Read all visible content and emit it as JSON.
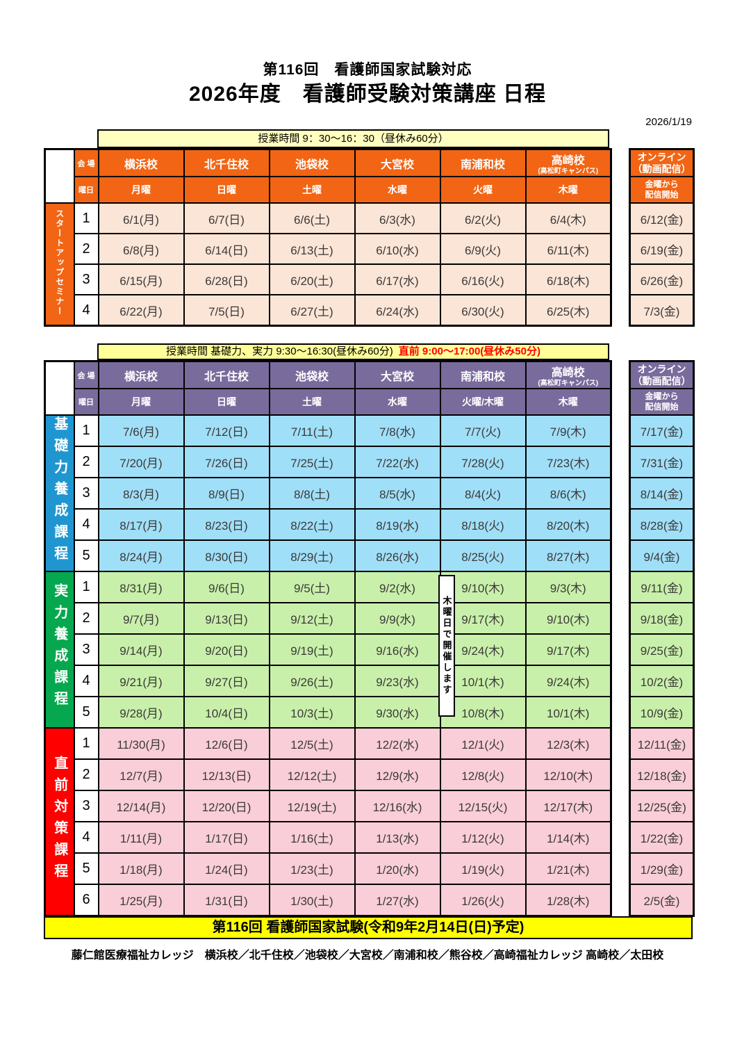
{
  "title": {
    "line1": "第116回　看護師国家試験対応",
    "line2": "2026年度　看護師受験対策講座 日程"
  },
  "date_label": "2026/1/19",
  "table1": {
    "time_note": "授業時間  9：30～16：30（昼休み60分）",
    "venue_label": "会 場",
    "day_label": "曜日",
    "schools": [
      "横浜校",
      "北千住校",
      "池袋校",
      "大宮校",
      "南浦和校",
      "高崎校"
    ],
    "takasaki_sub": "(高松町キャンパス)",
    "days": [
      "月曜",
      "日曜",
      "土曜",
      "水曜",
      "火曜",
      "木曜"
    ],
    "online": {
      "line1": "オンライン",
      "line2": "（動画配信）",
      "line3": "金曜から",
      "line4": "配信開始"
    },
    "section": {
      "label": "スタートアップセミナー",
      "rows": [
        {
          "no": "1",
          "dates": [
            "6/1(月)",
            "6/7(日)",
            "6/6(土)",
            "6/3(水)",
            "6/2(火)",
            "6/4(木)"
          ],
          "online": "6/12(金)"
        },
        {
          "no": "2",
          "dates": [
            "6/8(月)",
            "6/14(日)",
            "6/13(土)",
            "6/10(水)",
            "6/9(火)",
            "6/11(木)"
          ],
          "online": "6/19(金)"
        },
        {
          "no": "3",
          "dates": [
            "6/15(月)",
            "6/28(日)",
            "6/20(土)",
            "6/17(水)",
            "6/16(火)",
            "6/18(木)"
          ],
          "online": "6/26(金)"
        },
        {
          "no": "4",
          "dates": [
            "6/22(月)",
            "7/5(日)",
            "6/27(土)",
            "6/24(水)",
            "6/30(火)",
            "6/25(木)"
          ],
          "online": "7/3(金)"
        }
      ]
    }
  },
  "table2": {
    "time_note_black": "授業時間  基礎力、実力 9:30～16:30(昼休み60分)",
    "time_note_red": "直前 9:00～17:00(昼休み50分)",
    "venue_label": "会 場",
    "day_label": "曜日",
    "schools": [
      "横浜校",
      "北千住校",
      "池袋校",
      "大宮校",
      "南浦和校",
      "高崎校"
    ],
    "takasaki_sub": "(高松町キャンパス)",
    "days": [
      "月曜",
      "日曜",
      "土曜",
      "水曜",
      "火曜/木曜",
      "木曜"
    ],
    "online": {
      "line1": "オンライン",
      "line2": "（動画配信）",
      "line3": "金曜から",
      "line4": "配信開始"
    },
    "thursday_note": "木曜日で開催します",
    "sections": [
      {
        "id": "kiso",
        "label": "基礎力養成課程",
        "rows": [
          {
            "no": "1",
            "dates": [
              "7/6(月)",
              "7/12(日)",
              "7/11(土)",
              "7/8(水)",
              "7/7(火)",
              "7/9(木)"
            ],
            "online": "7/17(金)"
          },
          {
            "no": "2",
            "dates": [
              "7/20(月)",
              "7/26(日)",
              "7/25(土)",
              "7/22(水)",
              "7/28(火)",
              "7/23(木)"
            ],
            "online": "7/31(金)"
          },
          {
            "no": "3",
            "dates": [
              "8/3(月)",
              "8/9(日)",
              "8/8(土)",
              "8/5(水)",
              "8/4(火)",
              "8/6(木)"
            ],
            "online": "8/14(金)"
          },
          {
            "no": "4",
            "dates": [
              "8/17(月)",
              "8/23(日)",
              "8/22(土)",
              "8/19(水)",
              "8/18(火)",
              "8/20(木)"
            ],
            "online": "8/28(金)"
          },
          {
            "no": "5",
            "dates": [
              "8/24(月)",
              "8/30(日)",
              "8/29(土)",
              "8/26(水)",
              "8/25(火)",
              "8/27(木)"
            ],
            "online": "9/4(金)"
          }
        ]
      },
      {
        "id": "jitsuryoku",
        "label": "実力養成課程",
        "rows": [
          {
            "no": "1",
            "dates": [
              "8/31(月)",
              "9/6(日)",
              "9/5(土)",
              "9/2(水)",
              "9/10(木)",
              "9/3(木)"
            ],
            "online": "9/11(金)"
          },
          {
            "no": "2",
            "dates": [
              "9/7(月)",
              "9/13(日)",
              "9/12(土)",
              "9/9(水)",
              "9/17(木)",
              "9/10(木)"
            ],
            "online": "9/18(金)"
          },
          {
            "no": "3",
            "dates": [
              "9/14(月)",
              "9/20(日)",
              "9/19(土)",
              "9/16(水)",
              "9/24(木)",
              "9/17(木)"
            ],
            "online": "9/25(金)"
          },
          {
            "no": "4",
            "dates": [
              "9/21(月)",
              "9/27(日)",
              "9/26(土)",
              "9/23(水)",
              "10/1(木)",
              "9/24(木)"
            ],
            "online": "10/2(金)"
          },
          {
            "no": "5",
            "dates": [
              "9/28(月)",
              "10/4(日)",
              "10/3(土)",
              "9/30(水)",
              "10/8(木)",
              "10/1(木)"
            ],
            "online": "10/9(金)"
          }
        ]
      },
      {
        "id": "chokuzen",
        "label": "直前対策課程",
        "rows": [
          {
            "no": "1",
            "dates": [
              "11/30(月)",
              "12/6(日)",
              "12/5(土)",
              "12/2(水)",
              "12/1(火)",
              "12/3(木)"
            ],
            "online": "12/11(金)"
          },
          {
            "no": "2",
            "dates": [
              "12/7(月)",
              "12/13(日)",
              "12/12(土)",
              "12/9(水)",
              "12/8(火)",
              "12/10(木)"
            ],
            "online": "12/18(金)"
          },
          {
            "no": "3",
            "dates": [
              "12/14(月)",
              "12/20(日)",
              "12/19(土)",
              "12/16(水)",
              "12/15(火)",
              "12/17(木)"
            ],
            "online": "12/25(金)"
          },
          {
            "no": "4",
            "dates": [
              "1/11(月)",
              "1/17(日)",
              "1/16(土)",
              "1/13(水)",
              "1/12(火)",
              "1/14(木)"
            ],
            "online": "1/22(金)"
          },
          {
            "no": "5",
            "dates": [
              "1/18(月)",
              "1/24(日)",
              "1/23(土)",
              "1/20(水)",
              "1/19(火)",
              "1/21(木)"
            ],
            "online": "1/29(金)"
          },
          {
            "no": "6",
            "dates": [
              "1/25(月)",
              "1/31(日)",
              "1/30(土)",
              "1/27(水)",
              "1/26(火)",
              "1/28(木)"
            ],
            "online": "2/5(金)"
          }
        ]
      }
    ]
  },
  "footer": {
    "exam_bar": "第116回 看護師国家試験(令和9年2月14日(日)予定)",
    "campus_line": "藤仁館医療福祉カレッジ　横浜校／北千住校／池袋校／大宮校／南浦和校／熊谷校／高崎福祉カレッジ 高崎校／太田校"
  },
  "colors": {
    "orange_header": "#F26514",
    "peach_cell": "#FBE5D6",
    "purple_header": "#7A6B9D",
    "blue_label": "#2096D0",
    "light_blue_cell": "#A0DFF8",
    "green_label": "#06A84F",
    "light_green_cell": "#C8F0AA",
    "red_label": "#FE0000",
    "pink_cell": "#F9CED8",
    "time_bar_yellow": "#FFFFC0",
    "exam_bar_yellow": "#FFFF00"
  }
}
